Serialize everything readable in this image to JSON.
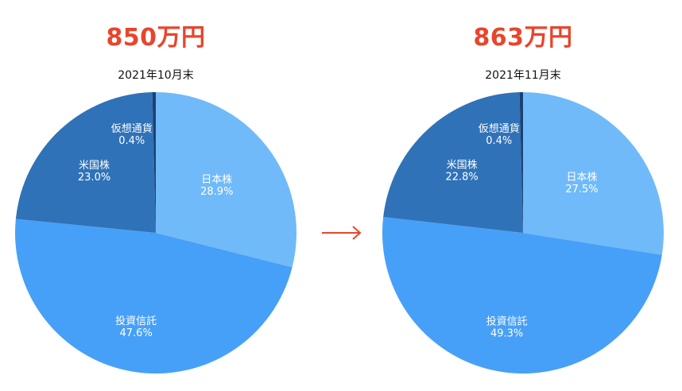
{
  "chart_data": [
    {
      "type": "pie",
      "total": "850万円",
      "title": "2021年10月末",
      "slices": [
        {
          "label": "日本株",
          "value": 28.9,
          "display": "28.9%",
          "color": "#70baf9"
        },
        {
          "label": "投資信託",
          "value": 47.6,
          "display": "47.6%",
          "color": "#47a0f7"
        },
        {
          "label": "米国株",
          "value": 23.0,
          "display": "23.0%",
          "color": "#2f72b8"
        },
        {
          "label": "仮想通貨",
          "value": 0.4,
          "display": "0.4%",
          "color": "#1c4170"
        }
      ]
    },
    {
      "type": "pie",
      "total": "863万円",
      "title": "2021年11月末",
      "slices": [
        {
          "label": "日本株",
          "value": 27.5,
          "display": "27.5%",
          "color": "#70baf9"
        },
        {
          "label": "投資信託",
          "value": 49.3,
          "display": "49.3%",
          "color": "#47a0f7"
        },
        {
          "label": "米国株",
          "value": 22.8,
          "display": "22.8%",
          "color": "#2f72b8"
        },
        {
          "label": "仮想通貨",
          "value": 0.4,
          "display": "0.4%",
          "color": "#1c4170"
        }
      ]
    }
  ],
  "arrow_icon": "right-arrow-icon",
  "colors": {
    "total_text": "#e8452c",
    "arrow": "#e8452c",
    "slice_label": "#ffffff"
  }
}
